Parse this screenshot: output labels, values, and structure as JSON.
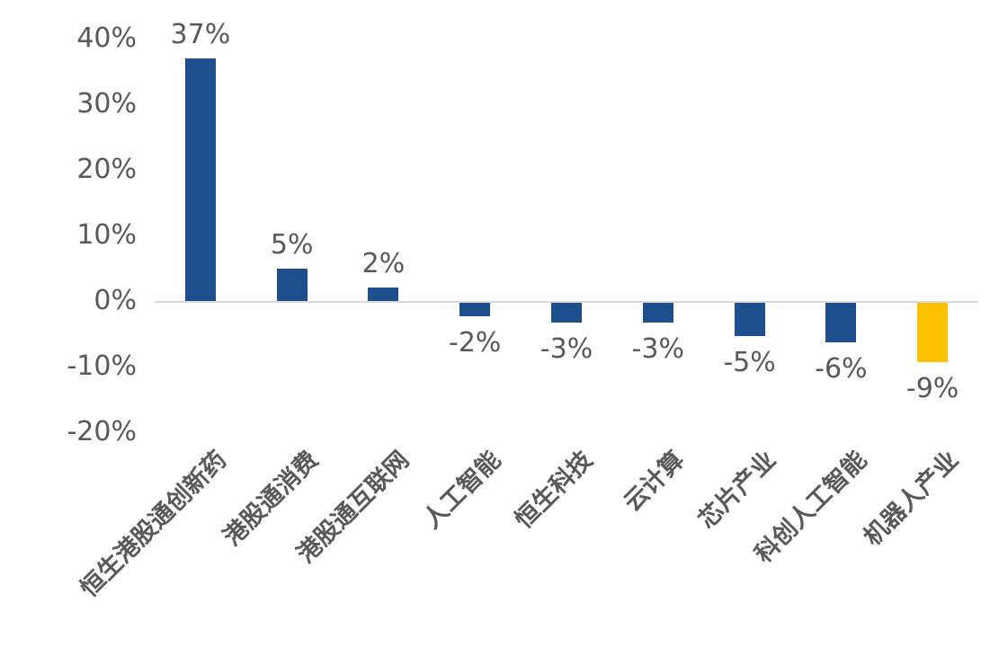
{
  "chart_data": {
    "type": "bar",
    "title": "",
    "xlabel": "",
    "ylabel": "",
    "categories": [
      "恒生港股通创新药",
      "港股通消费",
      "港股通互联网",
      "人工智能",
      "恒生科技",
      "云计算",
      "芯片产业",
      "科创人工智能",
      "机器人产业"
    ],
    "values": [
      37,
      5,
      2,
      -2,
      -3,
      -3,
      -5,
      -6,
      -9
    ],
    "data_labels": [
      "37%",
      "5%",
      "2%",
      "-2%",
      "-3%",
      "-3%",
      "-5%",
      "-6%",
      "-9%"
    ],
    "bar_colors": [
      "#1F4E8C",
      "#1F4E8C",
      "#1F4E8C",
      "#1F4E8C",
      "#1F4E8C",
      "#1F4E8C",
      "#1F4E8C",
      "#1F4E8C",
      "#FFC000"
    ],
    "ylim": [
      -20,
      40
    ],
    "y_ticks": {
      "values": [
        40,
        30,
        20,
        10,
        0,
        -10,
        -20
      ],
      "labels": [
        "40%",
        "30%",
        "20%",
        "10%",
        "0%",
        "-10%",
        "-20%"
      ]
    },
    "grid": false,
    "legend": "none",
    "colors": {
      "primary_bar": "#1F4E8C",
      "highlight_bar": "#FFC000",
      "axis_line": "#D9D9D9",
      "text": "#595959"
    }
  }
}
